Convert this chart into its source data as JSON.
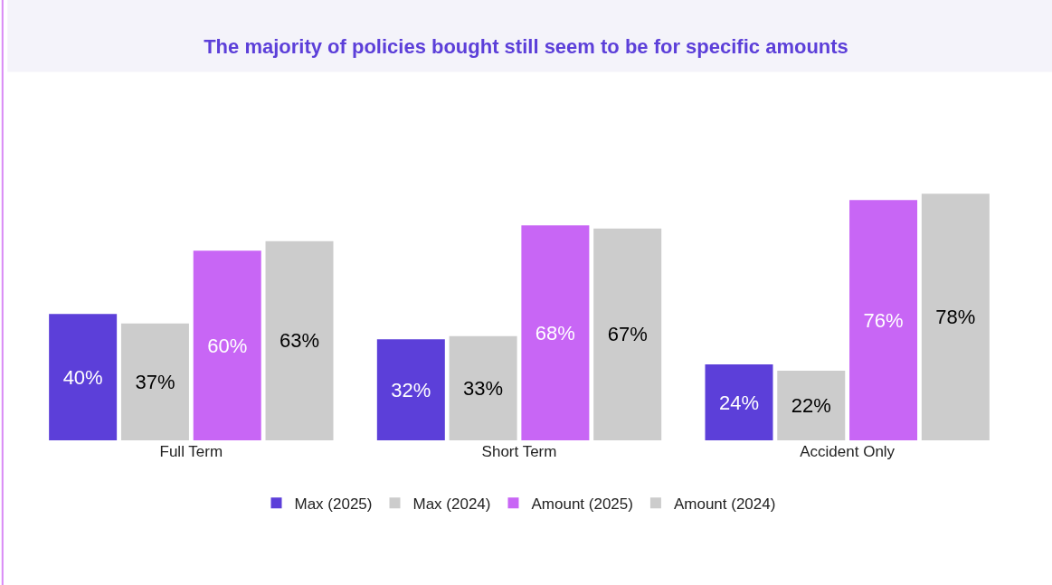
{
  "chart_data": {
    "type": "bar",
    "title": "The majority of policies bought still seem to be for specific amounts",
    "categories": [
      "Full Term",
      "Short Term",
      "Accident Only"
    ],
    "series": [
      {
        "name": "Max (2025)",
        "color": "#5c3fd9",
        "values": [
          40,
          32,
          24
        ],
        "value_labels": [
          "40%",
          "32%",
          "24%"
        ]
      },
      {
        "name": "Max (2024)",
        "color": "#cccccc",
        "values": [
          37,
          33,
          22
        ],
        "value_labels": [
          "37%",
          "33%",
          "22%"
        ]
      },
      {
        "name": "Amount (2025)",
        "color": "#c866f5",
        "values": [
          60,
          68,
          76
        ],
        "value_labels": [
          "60%",
          "68%",
          "76%"
        ]
      },
      {
        "name": "Amount (2024)",
        "color": "#cccccc",
        "values": [
          63,
          67,
          78
        ],
        "value_labels": [
          "63%",
          "67%",
          "78%"
        ]
      }
    ],
    "legend": "bottom"
  }
}
